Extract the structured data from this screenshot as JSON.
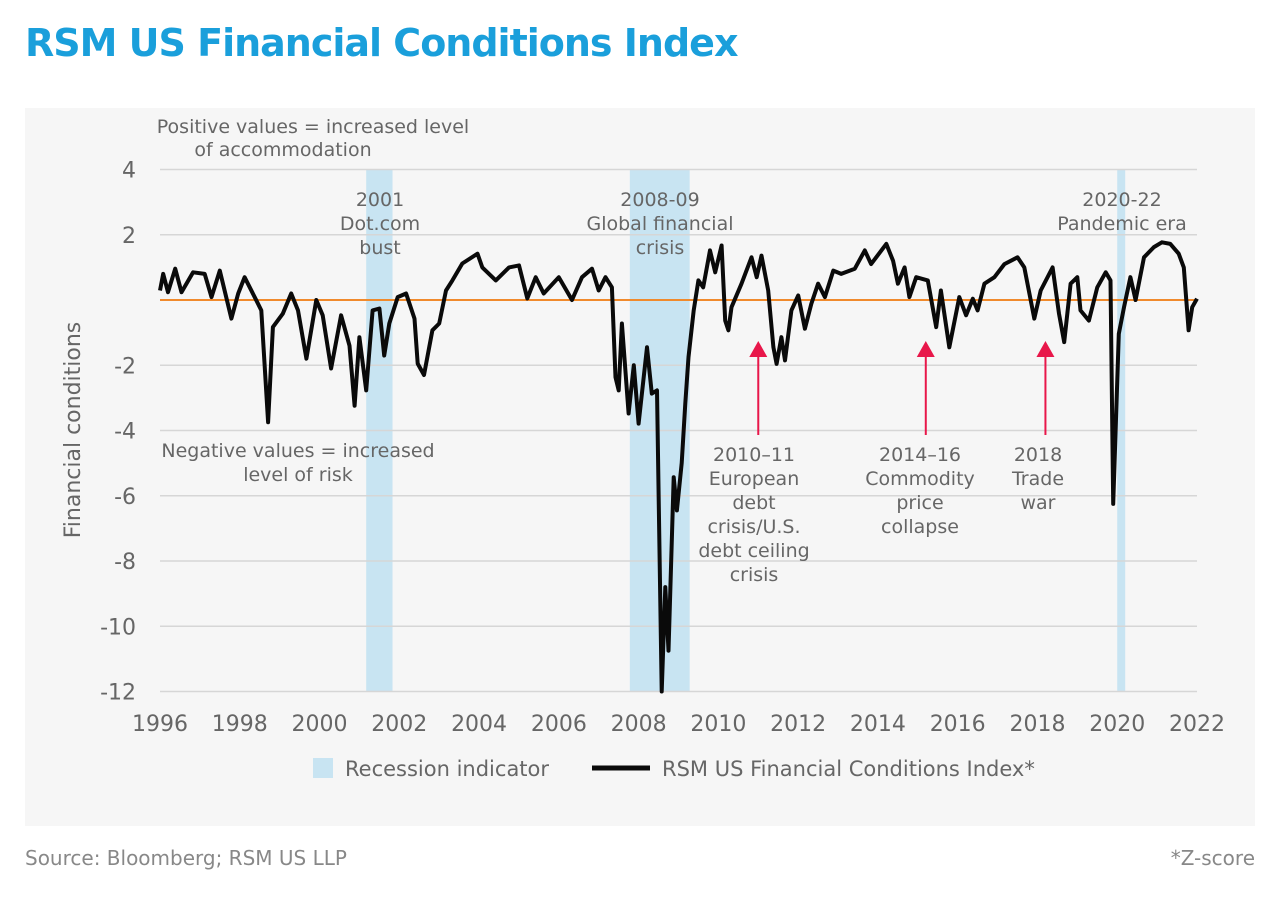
{
  "title": "RSM US Financial Conditions Index",
  "footer": {
    "source": "Source: Bloomberg; RSM US LLP",
    "note": "*Z-score"
  },
  "colors": {
    "title": "#1a9fdb",
    "recession": "#c8e4f2",
    "line": "#0a0a0a",
    "zero_line": "#f08a2c",
    "arrow": "#e8174a",
    "panel": "#f6f6f6",
    "grid": "#d6d6d6"
  },
  "annotations": {
    "positive": [
      "Positive values = increased level",
      "of accommodation"
    ],
    "negative": [
      "Negative values = increased",
      "level of risk"
    ],
    "dotcom": [
      "2001",
      "Dot.com",
      "bust"
    ],
    "gfc": [
      "2008-09",
      "Global financial",
      "crisis"
    ],
    "pandemic": [
      "2020-22",
      "Pandemic era"
    ],
    "european": [
      "2010–11",
      "European",
      "debt",
      "crisis/U.S.",
      "debt ceiling",
      "crisis"
    ],
    "commodity": [
      "2014–16",
      "Commodity",
      "price",
      "collapse"
    ],
    "tradewar": [
      "2018",
      "Trade",
      "war"
    ]
  },
  "chart_data": {
    "type": "line",
    "title": "RSM US Financial Conditions Index",
    "xlabel": "",
    "ylabel": "Financial conditions",
    "xlim": [
      1996,
      2022
    ],
    "ylim": [
      -12,
      4
    ],
    "x_ticks": [
      "1996",
      "1998",
      "2000",
      "2002",
      "2004",
      "2006",
      "2008",
      "2010",
      "2012",
      "2014",
      "2016",
      "2018",
      "2020",
      "2022"
    ],
    "y_ticks": [
      4,
      2,
      -2,
      -4,
      -6,
      -8,
      -10,
      -12
    ],
    "y_tick_labels": [
      "4",
      "2",
      "-2",
      "-4",
      "-6",
      "-8",
      "-10",
      "-12"
    ],
    "grid": "horizontal",
    "reference_line": 0,
    "legend_position": "bottom",
    "legend": [
      "Recession indicator",
      "RSM US Financial Conditions Index*"
    ],
    "recessions": [
      [
        2001.17,
        2001.83
      ],
      [
        2007.78,
        2009.28
      ],
      [
        2020.0,
        2020.2
      ]
    ],
    "series": [
      {
        "name": "RSM US Financial Conditions Index*",
        "x": [
          1996.0,
          1996.08,
          1996.2,
          1996.38,
          1996.54,
          1996.83,
          1997.12,
          1997.29,
          1997.5,
          1997.79,
          1997.96,
          1998.12,
          1998.42,
          1998.54,
          1998.71,
          1998.83,
          1999.08,
          1999.29,
          1999.46,
          1999.67,
          1999.92,
          2000.08,
          2000.29,
          2000.54,
          2000.75,
          2000.88,
          2001.0,
          2001.17,
          2001.33,
          2001.5,
          2001.62,
          2001.75,
          2001.96,
          2002.17,
          2002.38,
          2002.46,
          2002.62,
          2002.83,
          2003.0,
          2003.17,
          2003.33,
          2003.58,
          2003.96,
          2004.08,
          2004.42,
          2004.75,
          2005.0,
          2005.21,
          2005.42,
          2005.62,
          2006.0,
          2006.33,
          2006.58,
          2006.83,
          2007.0,
          2007.17,
          2007.33,
          2007.42,
          2007.5,
          2007.58,
          2007.75,
          2007.88,
          2008.0,
          2008.21,
          2008.33,
          2008.46,
          2008.58,
          2008.67,
          2008.75,
          2008.88,
          2008.96,
          2009.08,
          2009.17,
          2009.25,
          2009.38,
          2009.5,
          2009.62,
          2009.79,
          2009.92,
          2010.08,
          2010.17,
          2010.25,
          2010.33,
          2010.58,
          2010.83,
          2010.96,
          2011.08,
          2011.25,
          2011.38,
          2011.46,
          2011.58,
          2011.67,
          2011.83,
          2012.0,
          2012.17,
          2012.33,
          2012.5,
          2012.67,
          2012.88,
          2013.08,
          2013.42,
          2013.67,
          2013.83,
          2014.21,
          2014.38,
          2014.5,
          2014.67,
          2014.79,
          2014.96,
          2015.25,
          2015.46,
          2015.58,
          2015.79,
          2016.04,
          2016.21,
          2016.38,
          2016.5,
          2016.67,
          2016.92,
          2017.17,
          2017.5,
          2017.67,
          2017.92,
          2018.08,
          2018.38,
          2018.54,
          2018.67,
          2018.83,
          2019.0,
          2019.08,
          2019.29,
          2019.5,
          2019.71,
          2019.83,
          2019.9,
          2020.04,
          2020.17,
          2020.33,
          2020.46,
          2020.67,
          2020.92,
          2021.12,
          2021.33,
          2021.54,
          2021.67,
          2021.79,
          2021.88,
          2022.0
        ],
        "y": [
          0.29,
          0.8,
          0.24,
          0.96,
          0.24,
          0.85,
          0.8,
          0.09,
          0.9,
          -0.57,
          0.2,
          0.7,
          -0.02,
          -0.32,
          -3.75,
          -0.83,
          -0.42,
          0.2,
          -0.32,
          -1.8,
          0,
          -0.47,
          -2.1,
          -0.47,
          -1.4,
          -3.24,
          -1.14,
          -2.77,
          -0.32,
          -0.26,
          -1.7,
          -0.72,
          0.09,
          0.2,
          -0.57,
          -1.95,
          -2.3,
          -0.93,
          -0.72,
          0.29,
          0.6,
          1.12,
          1.42,
          1.0,
          0.6,
          1.0,
          1.06,
          0.05,
          0.7,
          0.2,
          0.7,
          0,
          0.7,
          0.96,
          0.29,
          0.7,
          0.39,
          -2.37,
          -2.77,
          -0.72,
          -3.48,
          -2.0,
          -3.79,
          -1.45,
          -2.87,
          -2.77,
          -12.0,
          -8.8,
          -10.75,
          -5.43,
          -6.45,
          -5.0,
          -3.17,
          -1.75,
          -0.32,
          0.6,
          0.39,
          1.52,
          0.85,
          1.67,
          -0.63,
          -0.93,
          -0.22,
          0.5,
          1.31,
          0.7,
          1.36,
          0.29,
          -1.45,
          -1.96,
          -1.14,
          -1.85,
          -0.32,
          0.14,
          -0.88,
          -0.12,
          0.5,
          0.09,
          0.9,
          0.8,
          0.96,
          1.52,
          1.1,
          1.72,
          1.2,
          0.5,
          1.0,
          0.09,
          0.7,
          0.6,
          -0.83,
          0.29,
          -1.45,
          0.09,
          -0.47,
          0.04,
          -0.32,
          0.5,
          0.7,
          1.1,
          1.31,
          1.0,
          -0.57,
          0.29,
          1.0,
          -0.42,
          -1.29,
          0.5,
          0.7,
          -0.32,
          -0.63,
          0.39,
          0.85,
          0.6,
          -6.25,
          -1.04,
          -0.22,
          0.7,
          0,
          1.31,
          1.62,
          1.77,
          1.72,
          1.42,
          1.0,
          -0.93,
          -0.22,
          0.04
        ]
      }
    ],
    "arrows": [
      {
        "x": 2011.0,
        "label": "2010–11"
      },
      {
        "x": 2015.2,
        "label": "2014–16"
      },
      {
        "x": 2018.2,
        "label": "2018"
      }
    ]
  }
}
